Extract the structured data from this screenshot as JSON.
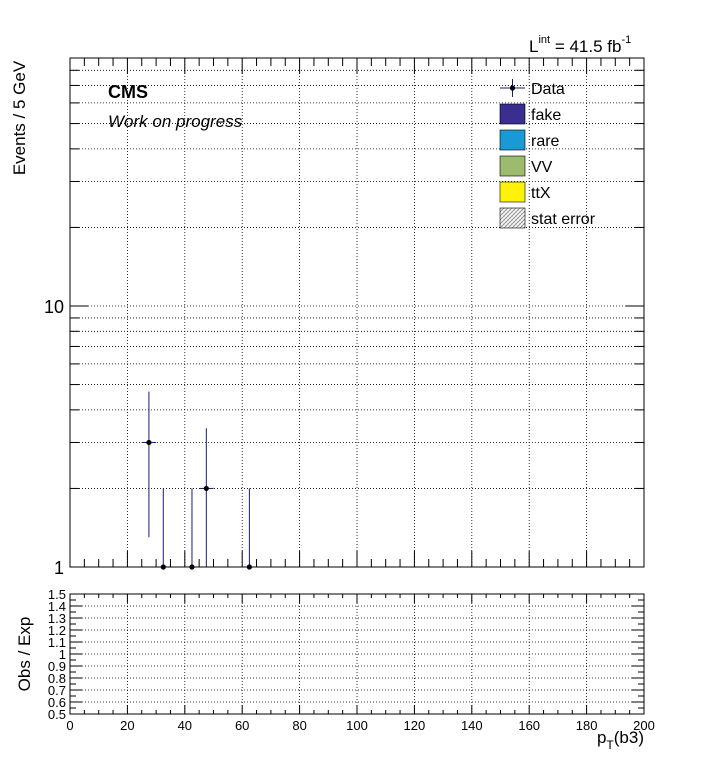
{
  "lumi": {
    "prefix": "L",
    "sup": "int",
    "value": " = 41.5 fb",
    "unit_sup": "-1"
  },
  "cms_label": "CMS",
  "cms_sublabel": "Work on progress",
  "legend": [
    {
      "label": "Data",
      "kind": "marker",
      "color": "#000000"
    },
    {
      "label": "fake",
      "kind": "box",
      "color": "#3a2f90"
    },
    {
      "label": "rare",
      "kind": "box",
      "color": "#1a99d4"
    },
    {
      "label": "VV",
      "kind": "box",
      "color": "#9cbb6c"
    },
    {
      "label": "ttX",
      "kind": "box",
      "color": "#fff20a"
    },
    {
      "label": "stat error",
      "kind": "hatch",
      "color": "#a0a0a0"
    }
  ],
  "chart_data": [
    {
      "type": "scatter",
      "name": "main",
      "ylabel": "Events / 5 GeV",
      "xlim": [
        0,
        200
      ],
      "ylim": [
        1,
        80
      ],
      "yscale": "log",
      "grid": true,
      "ytick_labels": [
        "1",
        "10"
      ],
      "series": [
        {
          "name": "Data",
          "color": "#000000",
          "points": [
            {
              "x": 27.5,
              "y": 3,
              "ylow": 1.3,
              "yhigh": 4.7
            },
            {
              "x": 32.5,
              "y": 1,
              "ylow": 1,
              "yhigh": 2
            },
            {
              "x": 42.5,
              "y": 1,
              "ylow": 1,
              "yhigh": 2
            },
            {
              "x": 47.5,
              "y": 2,
              "ylow": 1,
              "yhigh": 3.4
            },
            {
              "x": 62.5,
              "y": 1,
              "ylow": 1,
              "yhigh": 2
            }
          ]
        }
      ]
    },
    {
      "type": "scatter",
      "name": "ratio",
      "xlabel": "p",
      "xlabel_sub": "T",
      "xlabel_suffix": "(b3)",
      "ylabel": "Obs / Exp",
      "xlim": [
        0,
        200
      ],
      "ylim": [
        0.5,
        1.5
      ],
      "grid": true,
      "xtick_labels": [
        "0",
        "20",
        "40",
        "60",
        "80",
        "100",
        "120",
        "140",
        "160",
        "180",
        "200"
      ],
      "ytick_labels": [
        "0.5",
        "0.6",
        "0.7",
        "0.8",
        "0.9",
        "1",
        "1.1",
        "1.2",
        "1.3",
        "1.4",
        "1.5"
      ],
      "series": []
    }
  ]
}
